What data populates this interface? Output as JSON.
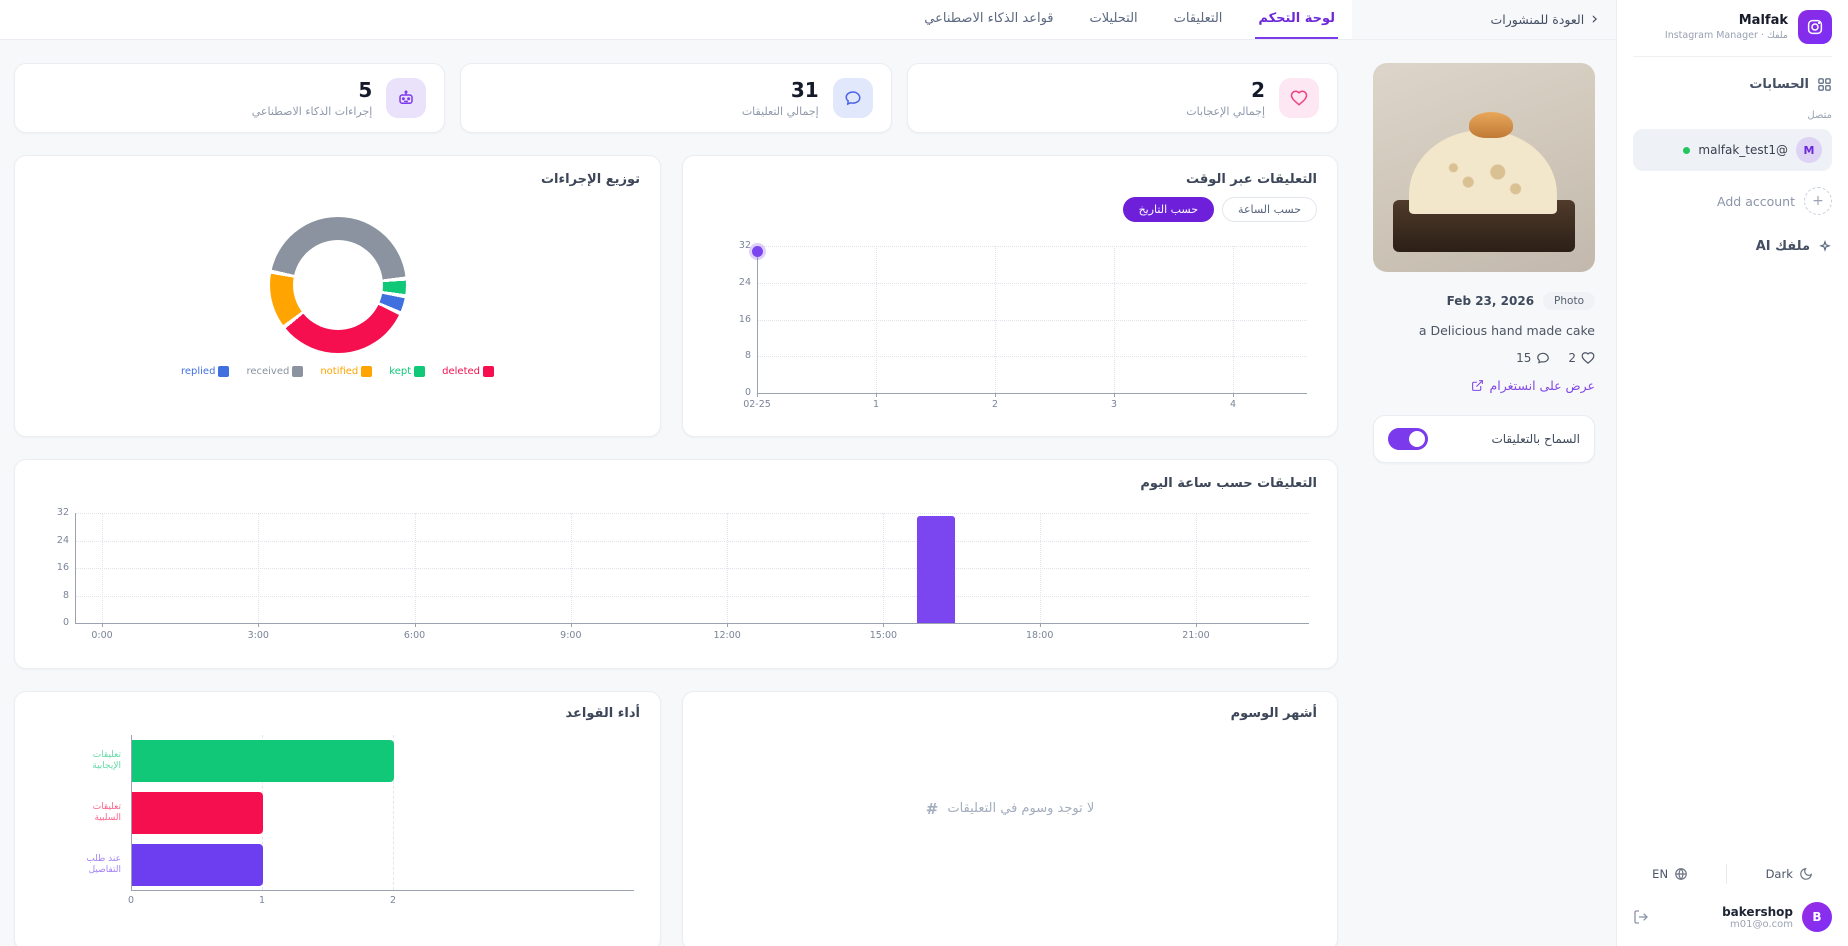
{
  "sidebar": {
    "app_name": "Malfak",
    "app_subtitle": "ملفك · Instagram Manager",
    "accounts_title": "الحسابات",
    "connected_label": "متصل",
    "account": {
      "initial": "M",
      "handle": "@malfak_test1"
    },
    "add_account_label": "Add account",
    "ai_profile_label": "ملفك AI",
    "language_label": "EN",
    "theme_label": "Dark",
    "user": {
      "name": "bakershop",
      "email": "m01@o.com",
      "initial": "B"
    }
  },
  "post_panel": {
    "back_label": "العودة للمنشورات",
    "date": "Feb 23, 2026",
    "type_badge": "Photo",
    "caption": "a Delicious hand made cake",
    "comments_count": "15",
    "likes_count": "2",
    "view_link": "عرض على انستغرام",
    "allow_comments_label": "السماح بالتعليقات",
    "allow_comments_on": true
  },
  "tabs": [
    {
      "label": "لوحة التحكم",
      "active": true
    },
    {
      "label": "التعليقات",
      "active": false
    },
    {
      "label": "التحليلات",
      "active": false
    },
    {
      "label": "قواعد الذكاء الاصطناعي",
      "active": false
    }
  ],
  "stats": [
    {
      "value": "2",
      "label": "إجمالي الإعجابات",
      "icon": "heart-icon",
      "bg": "#fce7f2",
      "fg": "#f0427c"
    },
    {
      "value": "31",
      "label": "إجمالي التعليقات",
      "icon": "comment-icon",
      "bg": "#e2e8fb",
      "fg": "#4a63e7"
    },
    {
      "value": "5",
      "label": "إجراءات الذكاء الاصطناعي",
      "icon": "robot-icon",
      "bg": "#eae1fa",
      "fg": "#7c3aed"
    }
  ],
  "chart_data": [
    {
      "id": "actions_donut",
      "type": "pie",
      "title": "توزيع الإجراءات",
      "legend": [
        {
          "label": "replied",
          "color": "#4070e0"
        },
        {
          "label": "received",
          "color": "#8a939f"
        },
        {
          "label": "notified",
          "color": "#ffa400"
        },
        {
          "label": "kept",
          "color": "#10c877"
        },
        {
          "label": "deleted",
          "color": "#f50f4e"
        }
      ],
      "segments_clockwise_from_top": [
        {
          "name": "received",
          "value": 14,
          "color": "#8a939f"
        },
        {
          "name": "kept",
          "value": 1,
          "color": "#10c877"
        },
        {
          "name": "replied",
          "value": 1,
          "color": "#4070e0"
        },
        {
          "name": "deleted",
          "value": 10,
          "color": "#f50f4e"
        },
        {
          "name": "notified",
          "value": 4,
          "color": "#ffa400"
        }
      ],
      "start_angle_deg": -77,
      "gap_deg": 3.5
    },
    {
      "id": "comments_over_time",
      "type": "line",
      "title": "التعليقات عبر الوقت",
      "mode_buttons": [
        {
          "label": "حسب الساعة",
          "active": false
        },
        {
          "label": "حسب التاريخ",
          "active": true
        }
      ],
      "x_ticks": [
        "02-25",
        "1",
        "2",
        "3",
        "4"
      ],
      "y_ticks": [
        0,
        8,
        16,
        24,
        32
      ],
      "ylim": [
        0,
        32
      ],
      "points": [
        {
          "x": "02-25",
          "xi": 0,
          "y": 31
        }
      ],
      "color": "#7b46f0",
      "grid": true
    },
    {
      "id": "comments_by_hour",
      "type": "bar",
      "title": "التعليقات حسب ساعة اليوم",
      "x_ticks": [
        "0:00",
        "3:00",
        "6:00",
        "9:00",
        "12:00",
        "15:00",
        "18:00",
        "21:00"
      ],
      "hour_step": 3,
      "y_ticks": [
        0,
        8,
        16,
        24,
        32
      ],
      "ylim": [
        0,
        32
      ],
      "bars": [
        {
          "hour": 16,
          "value": 31
        }
      ],
      "color": "#7b46f0",
      "grid": true
    },
    {
      "id": "rules_performance",
      "type": "hbar",
      "title": "أداء القواعد",
      "categories": [
        {
          "label_lines": [
            "تعليقات",
            "الإيجابية"
          ],
          "value": 2,
          "color": "#10c877"
        },
        {
          "label_lines": [
            "تعليقات",
            "السلبية"
          ],
          "value": 1,
          "color": "#f50f4e"
        },
        {
          "label_lines": [
            "عند طلب",
            "التفاصيل"
          ],
          "value": 1,
          "color": "#6d3ef0"
        }
      ],
      "x_ticks": [
        0,
        1,
        2
      ],
      "xlim": [
        0,
        2.7
      ],
      "grid": true
    }
  ],
  "hashtags": {
    "title": "أشهر الوسوم",
    "empty_icon": "#",
    "empty_message": "لا توجد وسوم في التعليقات"
  }
}
